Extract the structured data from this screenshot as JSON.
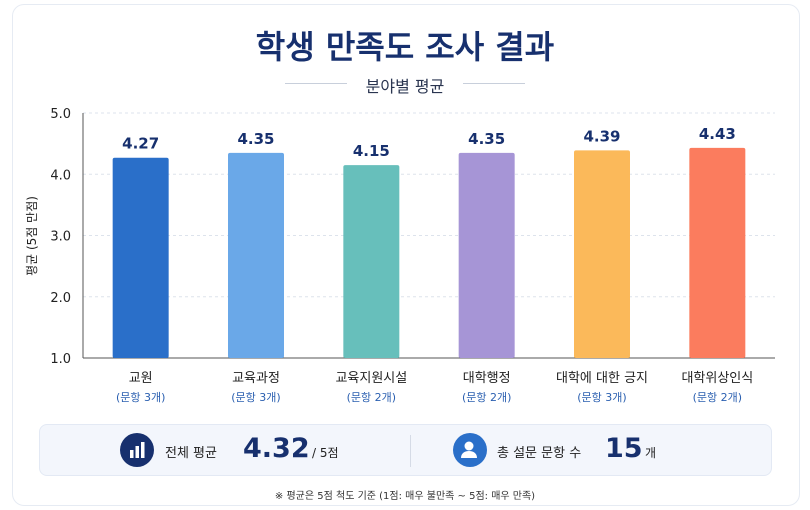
{
  "chart_data": {
    "type": "bar",
    "title": "학생 만족도 조사 결과",
    "subtitle": "분야별 평균",
    "ylabel": "평균 (5점 만점)",
    "ylim": [
      1.0,
      5.0
    ],
    "yticks": [
      "1.0",
      "2.0",
      "3.0",
      "4.0",
      "5.0"
    ],
    "grid": true,
    "categories": [
      "교원",
      "교육과정",
      "교육지원시설",
      "대학행정",
      "대학에 대한 긍지",
      "대학위상인식"
    ],
    "item_counts": [
      "(문항 3개)",
      "(문항 3개)",
      "(문항 2개)",
      "(문항 2개)",
      "(문항 3개)",
      "(문항 2개)"
    ],
    "values": [
      4.27,
      4.35,
      4.15,
      4.35,
      4.39,
      4.43
    ],
    "value_labels": [
      "4.27",
      "4.35",
      "4.15",
      "4.35",
      "4.39",
      "4.43"
    ],
    "colors": [
      "#2a6fc9",
      "#6aa8e8",
      "#67bfbb",
      "#a695d6",
      "#fbb95a",
      "#fb7c5e"
    ]
  },
  "summary": {
    "overall_label": "전체 평균",
    "overall_value": "4.32",
    "overall_unit": "/ 5점",
    "overall_icon": "bar-chart-icon",
    "items_label": "총 설문 문항 수",
    "items_value": "15",
    "items_unit": "개",
    "items_icon": "user-icon"
  },
  "note": "※ 평균은 5점 척도 기준 (1점: 매우 불만족 ~ 5점: 매우 만족)"
}
